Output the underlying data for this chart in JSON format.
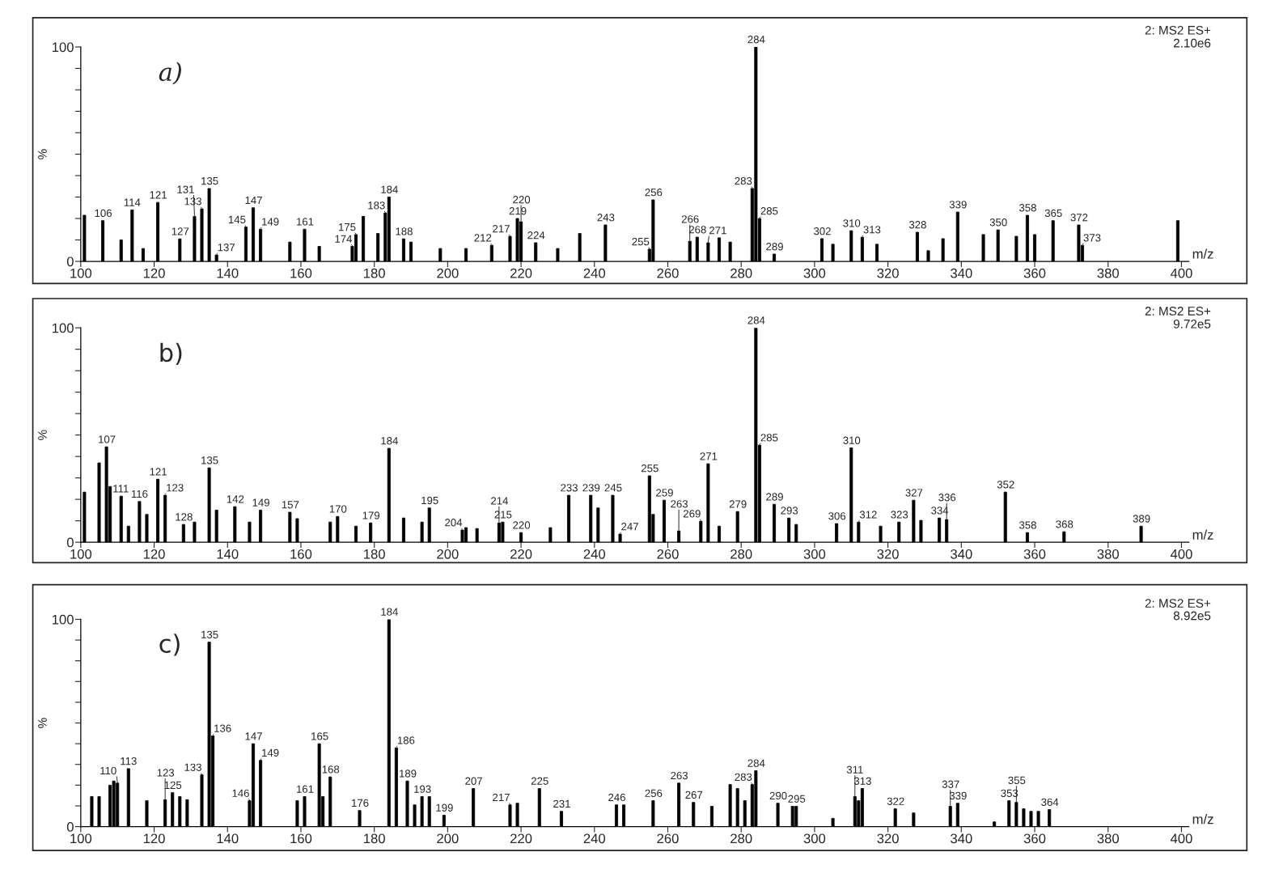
{
  "chart_data": [
    {
      "type": "bar",
      "title": "a)",
      "xlabel": "m/z",
      "ylabel": "%",
      "color": "#000000",
      "annotations": [
        "2: MS2 ES+",
        "2.10e6",
        {
          "text": "106",
          "x": 106,
          "y": 19
        },
        {
          "text": "114",
          "x": 114,
          "y": 24
        },
        {
          "text": "121",
          "x": 121,
          "y": 27.5
        },
        {
          "text": "127",
          "x": 127,
          "y": 10.5
        },
        {
          "text": "131",
          "x": 131,
          "y": 21
        },
        {
          "text": "133",
          "x": 133,
          "y": 24.5
        },
        {
          "text": "135",
          "x": 135,
          "y": 34
        },
        {
          "text": "137",
          "x": 137,
          "y": 3
        },
        {
          "text": "145",
          "x": 145,
          "y": 16
        },
        {
          "text": "147",
          "x": 147,
          "y": 25
        },
        {
          "text": "149",
          "x": 149,
          "y": 15
        },
        {
          "text": "161",
          "x": 161,
          "y": 15
        },
        {
          "text": "174",
          "x": 174,
          "y": 7
        },
        {
          "text": "175",
          "x": 175,
          "y": 12.5
        },
        {
          "text": "183",
          "x": 183,
          "y": 22.6
        },
        {
          "text": "184",
          "x": 184,
          "y": 30
        },
        {
          "text": "188",
          "x": 188,
          "y": 10.5
        },
        {
          "text": "212",
          "x": 212,
          "y": 7.5
        },
        {
          "text": "217",
          "x": 217,
          "y": 11.7
        },
        {
          "text": "219",
          "x": 219,
          "y": 20
        },
        {
          "text": "220",
          "x": 220,
          "y": 18.5
        },
        {
          "text": "224",
          "x": 224,
          "y": 8.7
        },
        {
          "text": "243",
          "x": 243,
          "y": 17
        },
        {
          "text": "255",
          "x": 255,
          "y": 5.7
        },
        {
          "text": "256",
          "x": 256,
          "y": 28.7
        },
        {
          "text": "266",
          "x": 266,
          "y": 9.4
        },
        {
          "text": "268",
          "x": 268,
          "y": 11.3
        },
        {
          "text": "271",
          "x": 271,
          "y": 8.7
        },
        {
          "text": "283",
          "x": 283,
          "y": 34
        },
        {
          "text": "284",
          "x": 284,
          "y": 100
        },
        {
          "text": "285",
          "x": 285,
          "y": 20
        },
        {
          "text": "289",
          "x": 289,
          "y": 3.4
        },
        {
          "text": "302",
          "x": 302,
          "y": 10.6
        },
        {
          "text": "310",
          "x": 310,
          "y": 14.3
        },
        {
          "text": "313",
          "x": 313,
          "y": 11.3
        },
        {
          "text": "328",
          "x": 328,
          "y": 13.6
        },
        {
          "text": "339",
          "x": 339,
          "y": 23
        },
        {
          "text": "350",
          "x": 350,
          "y": 14.7
        },
        {
          "text": "358",
          "x": 358,
          "y": 21.5
        },
        {
          "text": "365",
          "x": 365,
          "y": 19
        },
        {
          "text": "372",
          "x": 372,
          "y": 17
        },
        {
          "text": "373",
          "x": 373,
          "y": 7.5
        }
      ],
      "x": [
        101,
        106,
        111,
        114,
        117,
        121,
        127,
        131,
        133,
        135,
        137,
        145,
        147,
        149,
        157,
        161,
        165,
        174,
        175,
        177,
        181,
        183,
        184,
        188,
        190,
        198,
        205,
        212,
        217,
        219,
        220,
        224,
        230,
        236,
        243,
        255,
        256,
        266,
        268,
        271,
        274,
        277,
        283,
        284,
        285,
        289,
        302,
        305,
        310,
        313,
        317,
        328,
        331,
        335,
        339,
        346,
        350,
        355,
        358,
        360,
        365,
        372,
        373,
        399
      ],
      "values": [
        21.5,
        19,
        10,
        24,
        6,
        27.5,
        10.5,
        21,
        24.5,
        34,
        3,
        16,
        25,
        15,
        9,
        15,
        7,
        7,
        12.5,
        21,
        13,
        22.6,
        30,
        10.5,
        9,
        6,
        6,
        7.5,
        11.7,
        20,
        18.5,
        8.7,
        6,
        13,
        17,
        5.7,
        28.7,
        9.4,
        11.3,
        8.7,
        11,
        9,
        34,
        100,
        20,
        3.4,
        10.6,
        8,
        14.3,
        11.3,
        8,
        13.6,
        5,
        10.6,
        23,
        12.5,
        14.7,
        11.7,
        21.5,
        12.5,
        19,
        17,
        7.5,
        19
      ],
      "xlim": [
        100,
        402
      ],
      "xticks": [
        100,
        120,
        140,
        160,
        180,
        200,
        220,
        240,
        260,
        280,
        300,
        320,
        340,
        360,
        380,
        400
      ],
      "ylim": [
        0,
        100
      ],
      "yticks": [
        0,
        {
          "value": 10,
          "label": null
        },
        {
          "value": 20,
          "label": null
        },
        {
          "value": 30,
          "label": null
        },
        {
          "value": 40,
          "label": null
        },
        {
          "value": 50,
          "label": null
        },
        {
          "value": 60,
          "label": null
        },
        {
          "value": 70,
          "label": null
        },
        {
          "value": 80,
          "label": null
        },
        {
          "value": 90,
          "label": null
        },
        100
      ]
    },
    {
      "type": "bar",
      "title": "b)",
      "xlabel": "m/z",
      "ylabel": "%",
      "color": "#000000",
      "annotations": [
        "2: MS2 ES+",
        "9.72e5",
        {
          "text": "107",
          "x": 107,
          "y": 44.5
        },
        {
          "text": "111",
          "x": 111,
          "y": 21.5
        },
        {
          "text": "116",
          "x": 116,
          "y": 19
        },
        {
          "text": "121",
          "x": 121,
          "y": 29.4
        },
        {
          "text": "123",
          "x": 123,
          "y": 21.9
        },
        {
          "text": "128",
          "x": 128,
          "y": 8.3
        },
        {
          "text": "135",
          "x": 135,
          "y": 34.7
        },
        {
          "text": "142",
          "x": 142,
          "y": 16.6
        },
        {
          "text": "149",
          "x": 149,
          "y": 15
        },
        {
          "text": "157",
          "x": 157,
          "y": 14
        },
        {
          "text": "170",
          "x": 170,
          "y": 12
        },
        {
          "text": "179",
          "x": 179,
          "y": 9
        },
        {
          "text": "184",
          "x": 184,
          "y": 43.8
        },
        {
          "text": "195",
          "x": 195,
          "y": 16
        },
        {
          "text": "204",
          "x": 204,
          "y": 5.7
        },
        {
          "text": "214",
          "x": 214,
          "y": 9
        },
        {
          "text": "215",
          "x": 215,
          "y": 9.4
        },
        {
          "text": "220",
          "x": 220,
          "y": 4.5
        },
        {
          "text": "233",
          "x": 233,
          "y": 21.9
        },
        {
          "text": "239",
          "x": 239,
          "y": 21.9
        },
        {
          "text": "245",
          "x": 245,
          "y": 21.9
        },
        {
          "text": "247",
          "x": 247,
          "y": 3.8
        },
        {
          "text": "255",
          "x": 255,
          "y": 31
        },
        {
          "text": "259",
          "x": 259,
          "y": 19.6
        },
        {
          "text": "263",
          "x": 263,
          "y": 5.3
        },
        {
          "text": "269",
          "x": 269,
          "y": 9.8
        },
        {
          "text": "271",
          "x": 271,
          "y": 36.6
        },
        {
          "text": "279",
          "x": 279,
          "y": 14.3
        },
        {
          "text": "284",
          "x": 284,
          "y": 100
        },
        {
          "text": "285",
          "x": 285,
          "y": 45.3
        },
        {
          "text": "289",
          "x": 289,
          "y": 17.7
        },
        {
          "text": "293",
          "x": 293,
          "y": 11.3
        },
        {
          "text": "306",
          "x": 306,
          "y": 8.7
        },
        {
          "text": "310",
          "x": 310,
          "y": 44
        },
        {
          "text": "312",
          "x": 312,
          "y": 9.4
        },
        {
          "text": "323",
          "x": 323,
          "y": 9.4
        },
        {
          "text": "327",
          "x": 327,
          "y": 19.6
        },
        {
          "text": "334",
          "x": 334,
          "y": 11.3
        },
        {
          "text": "336",
          "x": 336,
          "y": 10.6
        },
        {
          "text": "352",
          "x": 352,
          "y": 23.4
        },
        {
          "text": "358",
          "x": 358,
          "y": 4.5
        },
        {
          "text": "368",
          "x": 368,
          "y": 4.9
        },
        {
          "text": "389",
          "x": 389,
          "y": 7.5
        }
      ],
      "x": [
        101,
        105,
        107,
        108,
        111,
        113,
        116,
        118,
        121,
        123,
        128,
        131,
        135,
        137,
        142,
        146,
        149,
        157,
        159,
        168,
        170,
        175,
        179,
        184,
        188,
        193,
        195,
        204,
        205,
        208,
        214,
        215,
        220,
        228,
        233,
        239,
        241,
        245,
        247,
        255,
        256,
        259,
        263,
        269,
        271,
        274,
        279,
        284,
        285,
        289,
        293,
        295,
        306,
        310,
        312,
        318,
        323,
        327,
        329,
        334,
        336,
        352,
        358,
        368,
        389
      ],
      "values": [
        23.4,
        37,
        44.5,
        26,
        21.5,
        7.5,
        19,
        13,
        29.4,
        21.9,
        8.3,
        9.4,
        34.7,
        15,
        16.6,
        9.4,
        15,
        14,
        11,
        9.4,
        12,
        7.5,
        9,
        43.8,
        11.3,
        9.4,
        16,
        5.7,
        6.8,
        6.4,
        9,
        9.4,
        4.5,
        6.8,
        21.9,
        21.9,
        16,
        21.9,
        3.8,
        31,
        13,
        19.6,
        5.3,
        9.8,
        36.6,
        7.5,
        14.3,
        100,
        45.3,
        17.7,
        11.3,
        8.3,
        8.7,
        44,
        9.4,
        7.5,
        9.4,
        19.6,
        10.2,
        11.3,
        10.6,
        23.4,
        4.5,
        4.9,
        7.5
      ],
      "xlim": [
        100,
        402
      ],
      "xticks": [
        100,
        120,
        140,
        160,
        180,
        200,
        220,
        240,
        260,
        280,
        300,
        320,
        340,
        360,
        380,
        400
      ],
      "ylim": [
        0,
        100
      ],
      "yticks": [
        0,
        {
          "value": 10,
          "label": null
        },
        {
          "value": 20,
          "label": null
        },
        {
          "value": 30,
          "label": null
        },
        {
          "value": 40,
          "label": null
        },
        {
          "value": 50,
          "label": null
        },
        {
          "value": 60,
          "label": null
        },
        {
          "value": 70,
          "label": null
        },
        {
          "value": 80,
          "label": null
        },
        {
          "value": 90,
          "label": null
        },
        100
      ]
    },
    {
      "type": "bar",
      "title": "c)",
      "xlabel": "m/z",
      "ylabel": "%",
      "color": "#000000",
      "annotations": [
        "2: MS2 ES+",
        "8.92e5",
        {
          "text": "110",
          "x": 110,
          "y": 21
        },
        {
          "text": "113",
          "x": 113,
          "y": 28
        },
        {
          "text": "123",
          "x": 123,
          "y": 13
        },
        {
          "text": "125",
          "x": 125,
          "y": 16.4
        },
        {
          "text": "133",
          "x": 133,
          "y": 25
        },
        {
          "text": "135",
          "x": 135,
          "y": 89
        },
        {
          "text": "136",
          "x": 136,
          "y": 43.8
        },
        {
          "text": "146",
          "x": 146,
          "y": 12.5
        },
        {
          "text": "147",
          "x": 147,
          "y": 40
        },
        {
          "text": "149",
          "x": 149,
          "y": 32
        },
        {
          "text": "161",
          "x": 161,
          "y": 14.5
        },
        {
          "text": "165",
          "x": 165,
          "y": 40
        },
        {
          "text": "168",
          "x": 168,
          "y": 24
        },
        {
          "text": "176",
          "x": 176,
          "y": 7.8
        },
        {
          "text": "184",
          "x": 184,
          "y": 100
        },
        {
          "text": "186",
          "x": 186,
          "y": 38
        },
        {
          "text": "189",
          "x": 189,
          "y": 22
        },
        {
          "text": "193",
          "x": 193,
          "y": 14.5
        },
        {
          "text": "199",
          "x": 199,
          "y": 5.5
        },
        {
          "text": "207",
          "x": 207,
          "y": 18.4
        },
        {
          "text": "217",
          "x": 217,
          "y": 10.5
        },
        {
          "text": "225",
          "x": 225,
          "y": 18.4
        },
        {
          "text": "231",
          "x": 231,
          "y": 7.4
        },
        {
          "text": "246",
          "x": 246,
          "y": 10.5
        },
        {
          "text": "256",
          "x": 256,
          "y": 12.5
        },
        {
          "text": "263",
          "x": 263,
          "y": 21
        },
        {
          "text": "267",
          "x": 267,
          "y": 11.7
        },
        {
          "text": "283",
          "x": 283,
          "y": 20.3
        },
        {
          "text": "284",
          "x": 284,
          "y": 27
        },
        {
          "text": "290",
          "x": 290,
          "y": 11.3
        },
        {
          "text": "295",
          "x": 295,
          "y": 9.8
        },
        {
          "text": "311",
          "x": 311,
          "y": 14.5
        },
        {
          "text": "313",
          "x": 313,
          "y": 18.4
        },
        {
          "text": "322",
          "x": 322,
          "y": 8.6
        },
        {
          "text": "337",
          "x": 337,
          "y": 9.8
        },
        {
          "text": "339",
          "x": 339,
          "y": 11.3
        },
        {
          "text": "353",
          "x": 353,
          "y": 12.5
        },
        {
          "text": "355",
          "x": 355,
          "y": 11.7
        },
        {
          "text": "364",
          "x": 364,
          "y": 8.2
        }
      ],
      "x": [
        103,
        105,
        108,
        109,
        110,
        113,
        118,
        123,
        125,
        127,
        129,
        133,
        135,
        136,
        146,
        147,
        149,
        159,
        161,
        165,
        166,
        168,
        176,
        184,
        186,
        189,
        191,
        193,
        195,
        199,
        207,
        217,
        219,
        225,
        231,
        246,
        248,
        256,
        263,
        267,
        272,
        277,
        279,
        281,
        283,
        284,
        290,
        294,
        295,
        305,
        311,
        312,
        313,
        322,
        327,
        337,
        339,
        349,
        353,
        355,
        357,
        359,
        361,
        364
      ],
      "values": [
        14.5,
        14.5,
        20,
        22,
        21,
        28,
        12.5,
        13,
        16.4,
        14.5,
        13,
        25,
        89,
        43.8,
        12.5,
        40,
        32,
        12.5,
        14.5,
        40,
        14.5,
        24,
        7.8,
        100,
        38,
        22,
        10.5,
        14.5,
        14.5,
        5.5,
        18.4,
        10.5,
        11.3,
        18.4,
        7.4,
        10.5,
        10.5,
        12.5,
        21,
        11.7,
        9.8,
        20.3,
        18.4,
        12.5,
        20.3,
        27,
        11.3,
        9.8,
        9.8,
        4,
        14.5,
        12.5,
        18.4,
        8.6,
        6.6,
        9.8,
        11.3,
        2.3,
        12.5,
        11.7,
        8.6,
        7.4,
        7.4,
        8.2
      ],
      "xlim": [
        100,
        402
      ],
      "xticks": [
        100,
        120,
        140,
        160,
        180,
        200,
        220,
        240,
        260,
        280,
        300,
        320,
        340,
        360,
        380,
        400
      ],
      "ylim": [
        0,
        100
      ],
      "yticks": [
        0,
        {
          "value": 10,
          "label": null
        },
        {
          "value": 20,
          "label": null
        },
        {
          "value": 30,
          "label": null
        },
        {
          "value": 40,
          "label": null
        },
        {
          "value": 50,
          "label": null
        },
        {
          "value": 60,
          "label": null
        },
        {
          "value": 70,
          "label": null
        },
        {
          "value": 80,
          "label": null
        },
        {
          "value": 90,
          "label": null
        },
        100
      ]
    }
  ]
}
